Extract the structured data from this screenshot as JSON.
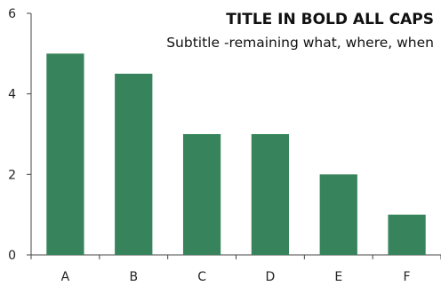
{
  "chart_data": {
    "type": "bar",
    "title": "TITLE IN BOLD ALL CAPS",
    "subtitle": "Subtitle -remaining what, where, when",
    "categories": [
      "A",
      "B",
      "C",
      "D",
      "E",
      "F"
    ],
    "values": [
      5,
      4.5,
      3,
      3,
      2,
      1
    ],
    "ylim": [
      0,
      6
    ],
    "yticks": [
      0,
      2,
      4,
      6
    ],
    "grid": false,
    "bar_color": "#37845c"
  }
}
